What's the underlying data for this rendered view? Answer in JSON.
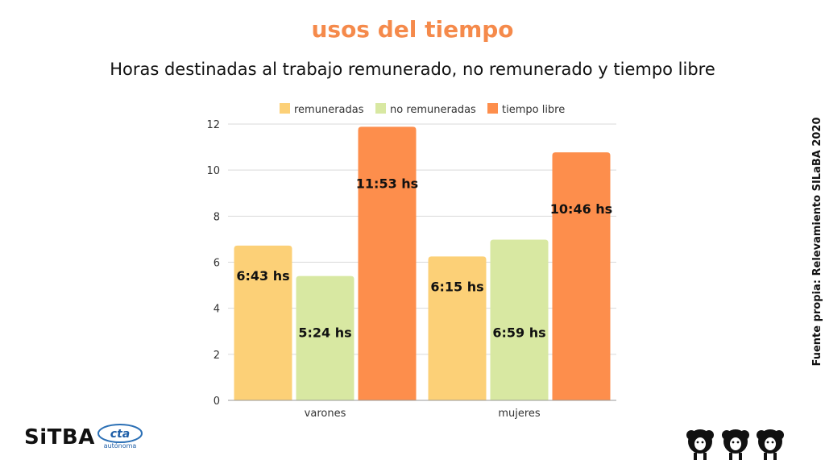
{
  "title": "usos del tiempo",
  "subtitle": "Horas destinadas al trabajo remunerado, no remunerado y tiempo libre",
  "source": "Fuente propia: Relevamiento SILaBA 2020",
  "logos": {
    "sitba": "SiTBA",
    "cta": "cta",
    "cta_sub": "autónoma"
  },
  "colors": {
    "remuneradas": "#fcd077",
    "no_remuneradas": "#d8e8a2",
    "tiempo_libre": "#fd8e4c",
    "accent": "#f58a4b"
  },
  "chart_data": {
    "type": "bar",
    "categories": [
      "varones",
      "mujeres"
    ],
    "series": [
      {
        "name": "remuneradas",
        "values": [
          6.72,
          6.25
        ],
        "labels": [
          "6:43 hs",
          "6:15 hs"
        ]
      },
      {
        "name": "no remuneradas",
        "values": [
          5.4,
          6.98
        ],
        "labels": [
          "5:24 hs",
          "6:59 hs"
        ]
      },
      {
        "name": "tiempo libre",
        "values": [
          11.88,
          10.77
        ],
        "labels": [
          "11:53 hs",
          "10:46 hs"
        ]
      }
    ],
    "yticks": [
      0,
      2,
      4,
      6,
      8,
      10,
      12
    ],
    "ylim": [
      0,
      12
    ],
    "grid": true,
    "legend": "top"
  }
}
